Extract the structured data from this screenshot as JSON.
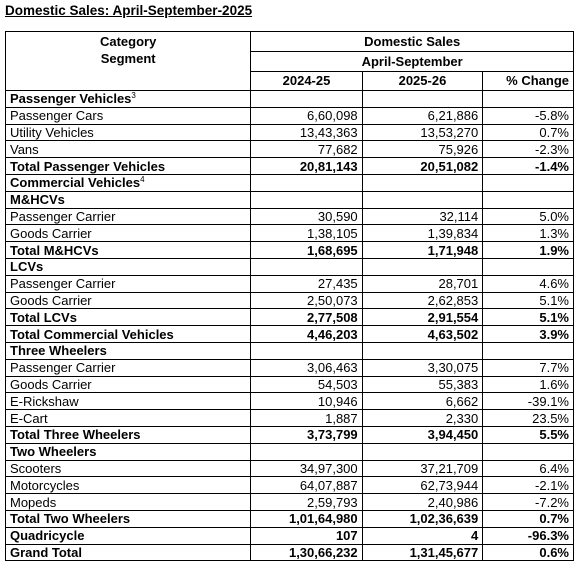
{
  "title": "Domestic Sales: April-September-2025",
  "headers": {
    "category": "Category",
    "segment": "Segment",
    "domestic_sales": "Domestic Sales",
    "period": "April-September",
    "col_prev": "2024-25",
    "col_curr": "2025-26",
    "col_change": "% Change"
  },
  "rows": [
    {
      "label": "Passenger Vehicles",
      "sup": "3",
      "type": "section",
      "prev": "",
      "curr": "",
      "change": ""
    },
    {
      "label": "Passenger Cars",
      "sup": "",
      "type": "item",
      "prev": "6,60,098",
      "curr": "6,21,886",
      "change": "-5.8%"
    },
    {
      "label": "Utility Vehicles",
      "sup": "",
      "type": "item",
      "prev": "13,43,363",
      "curr": "13,53,270",
      "change": "0.7%"
    },
    {
      "label": "Vans",
      "sup": "",
      "type": "item",
      "prev": "77,682",
      "curr": "75,926",
      "change": "-2.3%"
    },
    {
      "label": "Total Passenger Vehicles",
      "sup": "",
      "type": "total",
      "prev": "20,81,143",
      "curr": "20,51,082",
      "change": "-1.4%"
    },
    {
      "label": "Commercial Vehicles",
      "sup": "4",
      "type": "section",
      "prev": "",
      "curr": "",
      "change": ""
    },
    {
      "label": "M&HCVs",
      "sup": "",
      "type": "section",
      "prev": "",
      "curr": "",
      "change": ""
    },
    {
      "label": "Passenger Carrier",
      "sup": "",
      "type": "item",
      "prev": "30,590",
      "curr": "32,114",
      "change": "5.0%"
    },
    {
      "label": "Goods Carrier",
      "sup": "",
      "type": "item",
      "prev": "1,38,105",
      "curr": "1,39,834",
      "change": "1.3%"
    },
    {
      "label": "Total M&HCVs",
      "sup": "",
      "type": "total",
      "prev": "1,68,695",
      "curr": "1,71,948",
      "change": "1.9%"
    },
    {
      "label": "LCVs",
      "sup": "",
      "type": "section",
      "prev": "",
      "curr": "",
      "change": ""
    },
    {
      "label": "Passenger Carrier",
      "sup": "",
      "type": "item",
      "prev": "27,435",
      "curr": "28,701",
      "change": "4.6%"
    },
    {
      "label": "Goods Carrier",
      "sup": "",
      "type": "item",
      "prev": "2,50,073",
      "curr": "2,62,853",
      "change": "5.1%"
    },
    {
      "label": "Total LCVs",
      "sup": "",
      "type": "total",
      "prev": "2,77,508",
      "curr": "2,91,554",
      "change": "5.1%"
    },
    {
      "label": "Total Commercial Vehicles",
      "sup": "",
      "type": "total",
      "prev": "4,46,203",
      "curr": "4,63,502",
      "change": "3.9%"
    },
    {
      "label": "Three Wheelers",
      "sup": "",
      "type": "section",
      "prev": "",
      "curr": "",
      "change": ""
    },
    {
      "label": "Passenger Carrier",
      "sup": "",
      "type": "item",
      "prev": "3,06,463",
      "curr": "3,30,075",
      "change": "7.7%"
    },
    {
      "label": "Goods Carrier",
      "sup": "",
      "type": "item",
      "prev": "54,503",
      "curr": "55,383",
      "change": "1.6%"
    },
    {
      "label": "E-Rickshaw",
      "sup": "",
      "type": "item",
      "prev": "10,946",
      "curr": "6,662",
      "change": "-39.1%"
    },
    {
      "label": "E-Cart",
      "sup": "",
      "type": "item",
      "prev": "1,887",
      "curr": "2,330",
      "change": "23.5%"
    },
    {
      "label": "Total Three Wheelers",
      "sup": "",
      "type": "total",
      "prev": "3,73,799",
      "curr": "3,94,450",
      "change": "5.5%"
    },
    {
      "label": "Two Wheelers",
      "sup": "",
      "type": "section",
      "prev": "",
      "curr": "",
      "change": ""
    },
    {
      "label": "Scooters",
      "sup": "",
      "type": "item",
      "prev": "34,97,300",
      "curr": "37,21,709",
      "change": "6.4%"
    },
    {
      "label": "Motorcycles",
      "sup": "",
      "type": "item",
      "prev": "64,07,887",
      "curr": "62,73,944",
      "change": "-2.1%"
    },
    {
      "label": "Mopeds",
      "sup": "",
      "type": "item",
      "prev": "2,59,793",
      "curr": "2,40,986",
      "change": "-7.2%"
    },
    {
      "label": "Total Two Wheelers",
      "sup": "",
      "type": "total",
      "prev": "1,01,64,980",
      "curr": "1,02,36,639",
      "change": "0.7%"
    },
    {
      "label": "Quadricycle",
      "sup": "",
      "type": "total",
      "prev": "107",
      "curr": "4",
      "change": "-96.3%"
    },
    {
      "label": "Grand Total",
      "sup": "",
      "type": "total",
      "prev": "1,30,66,232",
      "curr": "1,31,45,677",
      "change": "0.6%"
    }
  ]
}
